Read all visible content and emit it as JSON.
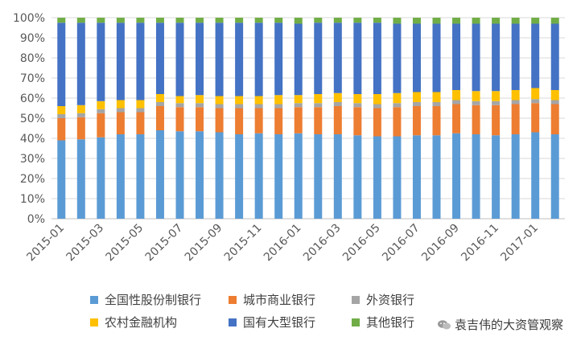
{
  "chart_data": {
    "type": "bar",
    "stacked": true,
    "percent": true,
    "categories": [
      "2015-01",
      "2015-02",
      "2015-03",
      "2015-04",
      "2015-05",
      "2015-06",
      "2015-07",
      "2015-08",
      "2015-09",
      "2015-10",
      "2015-11",
      "2015-12",
      "2016-01",
      "2016-02",
      "2016-03",
      "2016-04",
      "2016-05",
      "2016-06",
      "2016-07",
      "2016-08",
      "2016-09",
      "2016-10",
      "2016-11",
      "2016-12",
      "2017-01",
      "2017-02"
    ],
    "x_tick_labels_shown": [
      "2015-01",
      "2015-03",
      "2015-05",
      "2015-07",
      "2015-09",
      "2015-11",
      "2016-01",
      "2016-03",
      "2016-05",
      "2016-07",
      "2016-09",
      "2016-11",
      "2017-01"
    ],
    "y_ticks": [
      "0%",
      "10%",
      "20%",
      "30%",
      "40%",
      "50%",
      "60%",
      "70%",
      "80%",
      "90%",
      "100%"
    ],
    "ylim": [
      0,
      100
    ],
    "grid": true,
    "legend_position": "bottom",
    "series": [
      {
        "name": "全国性股份制银行",
        "color": "#5B9BD5",
        "values": [
          39,
          39.5,
          40.5,
          42,
          42,
          44,
          43.5,
          43.5,
          43,
          42,
          42.5,
          42,
          42.5,
          42,
          42,
          41.5,
          41,
          41,
          41.5,
          41.5,
          42.5,
          42,
          41.5,
          42,
          43,
          42
        ]
      },
      {
        "name": "城市商业银行",
        "color": "#ED7D31",
        "values": [
          11,
          11,
          12,
          11,
          11,
          12,
          12,
          12,
          12,
          13,
          12.5,
          13,
          13,
          13.5,
          14,
          14,
          14,
          14.5,
          14.5,
          14.5,
          14.5,
          14.5,
          15,
          15,
          14.5,
          15
        ]
      },
      {
        "name": "外资银行",
        "color": "#A5A5A5",
        "values": [
          2,
          2,
          2,
          2,
          2,
          2,
          2,
          2,
          2,
          2,
          2,
          2,
          2,
          2,
          2,
          2,
          2,
          2,
          2,
          2,
          2,
          2,
          2,
          2,
          2,
          2
        ]
      },
      {
        "name": "农村金融机构",
        "color": "#FFC000",
        "values": [
          4,
          4,
          4,
          4,
          4,
          4,
          3.5,
          4,
          4,
          4,
          4,
          4.5,
          4,
          4.5,
          4.5,
          4.5,
          5,
          5,
          5,
          5,
          5,
          5,
          5,
          5,
          5.5,
          5
        ]
      },
      {
        "name": "国有大型银行",
        "color": "#4472C4",
        "values": [
          41.5,
          41,
          39,
          38.5,
          38.5,
          35.5,
          36.5,
          36,
          36.5,
          36.5,
          36.5,
          36,
          35.5,
          35.5,
          35,
          35.5,
          35.5,
          34.5,
          34,
          34,
          33,
          33.5,
          33.5,
          33,
          32,
          33
        ]
      },
      {
        "name": "其他银行",
        "color": "#70AD47",
        "values": [
          2.5,
          2.5,
          2.5,
          2.5,
          2.5,
          2.5,
          2.5,
          2.5,
          2.5,
          2.5,
          2.5,
          2.5,
          3,
          2.5,
          2.5,
          2.5,
          2.5,
          3,
          3,
          3,
          3,
          3,
          3,
          3,
          3,
          3
        ]
      }
    ]
  },
  "legend": {
    "items": [
      {
        "label": "全国性股份制银行",
        "color": "#5B9BD5"
      },
      {
        "label": "城市商业银行",
        "color": "#ED7D31"
      },
      {
        "label": "外资银行",
        "color": "#A5A5A5"
      },
      {
        "label": "农村金融机构",
        "color": "#FFC000"
      },
      {
        "label": "国有大型银行",
        "color": "#4472C4"
      },
      {
        "label": "其他银行",
        "color": "#70AD47"
      }
    ]
  },
  "watermark": {
    "text": "袁吉伟的大资管观察",
    "icon": "wechat-icon"
  }
}
